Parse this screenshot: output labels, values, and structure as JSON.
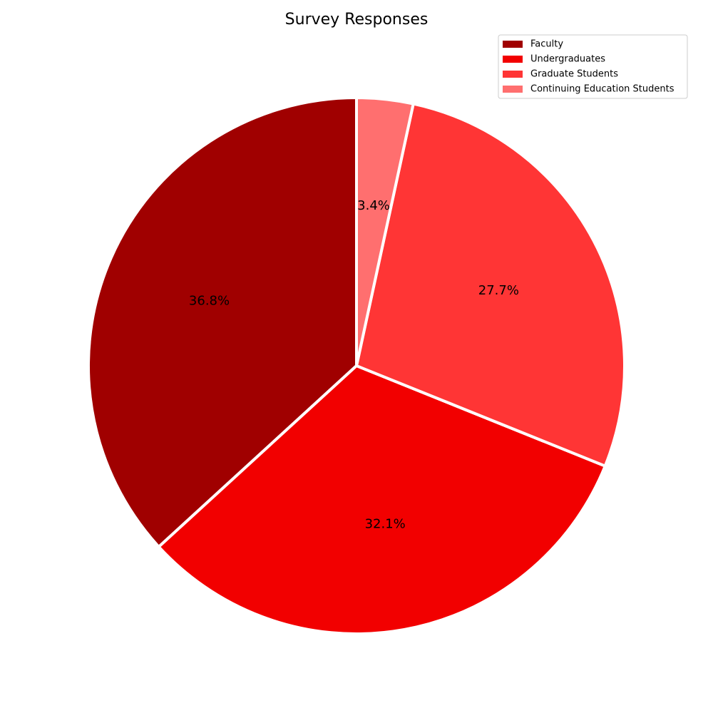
{
  "chart_data": {
    "type": "pie",
    "title": "Survey Responses",
    "categories": [
      "Faculty",
      "Undergraduates",
      "Graduate Students",
      "Continuing Education Students"
    ],
    "values": [
      36.8,
      32.1,
      27.7,
      3.4
    ],
    "labels": [
      "36.8%",
      "32.1%",
      "27.7%",
      "3.4%"
    ],
    "colors": [
      "#a00000",
      "#f20000",
      "#ff3535",
      "#ff6f6f"
    ],
    "start_angle_deg": 90,
    "direction": "counterclockwise",
    "legend_position": "top-right"
  }
}
